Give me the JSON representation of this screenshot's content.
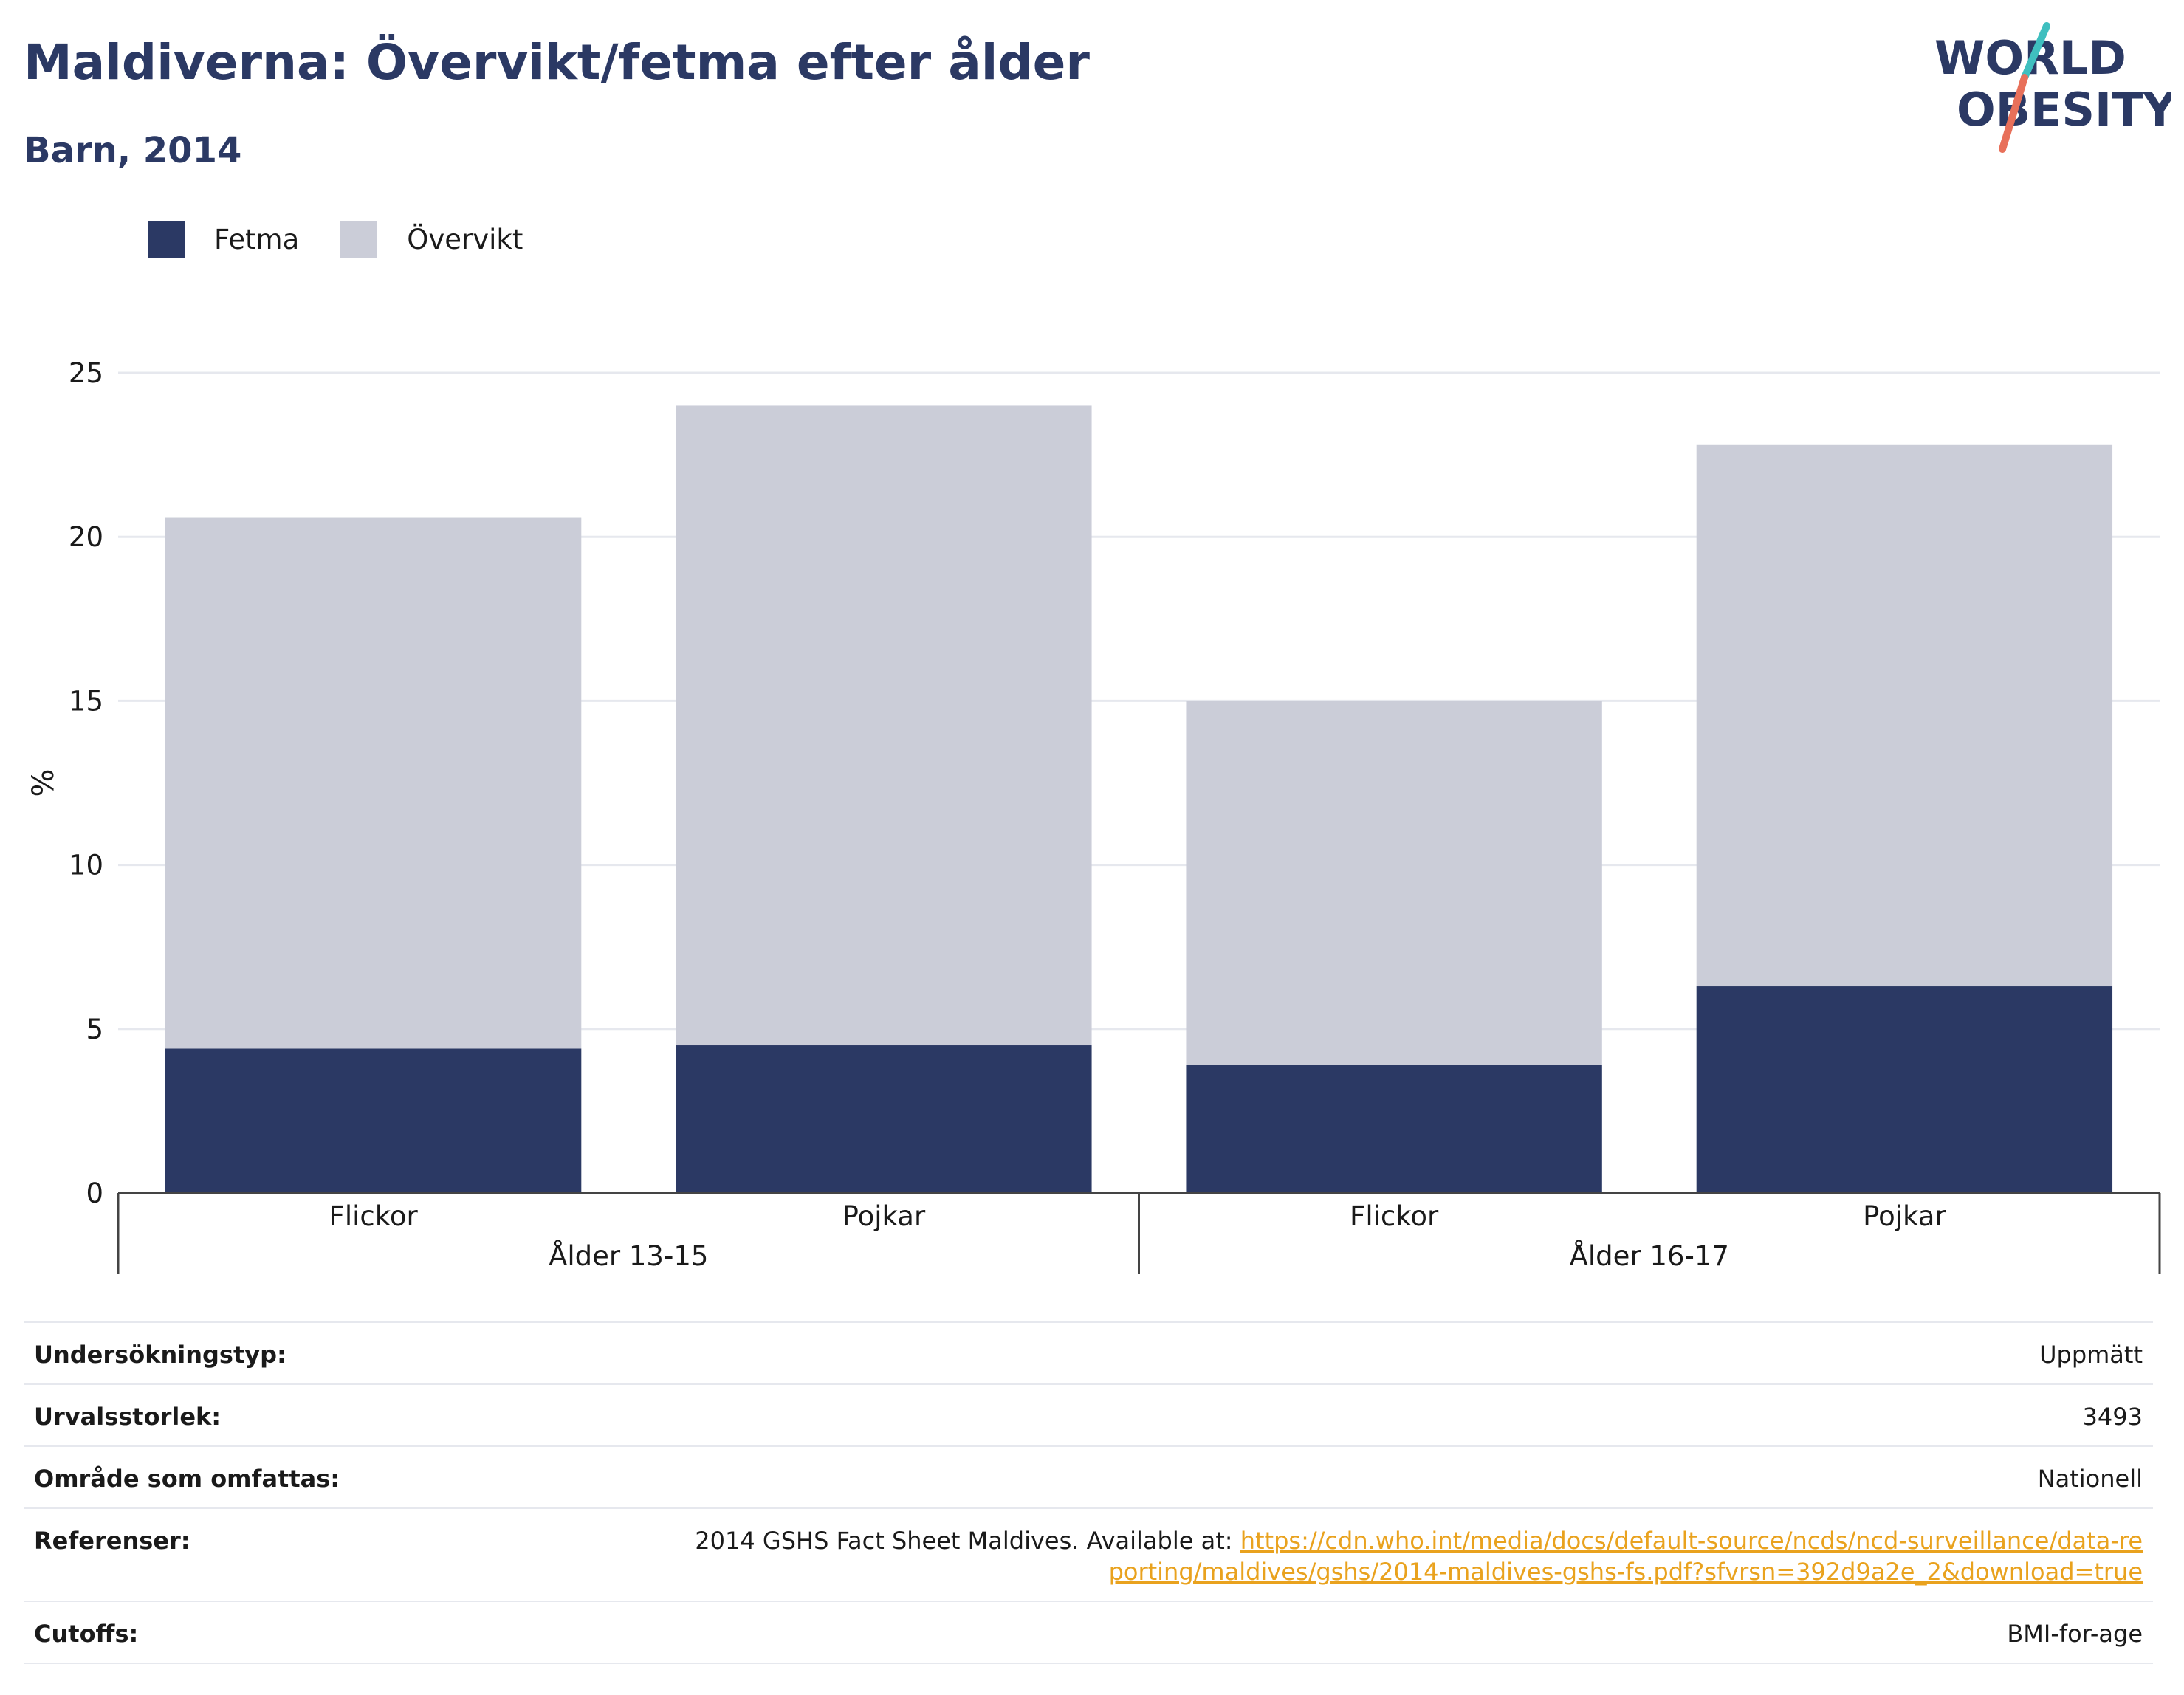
{
  "header": {
    "title": "Maldiverna: Övervikt/fetma efter ålder",
    "subtitle": "Barn, 2014"
  },
  "logo": {
    "line1": "WORLD",
    "line2": "OBESITY",
    "accent_teal": "#3fbfbf",
    "accent_coral": "#e8705a"
  },
  "colors": {
    "fetma": "#2b3964",
    "overvikt": "#cbcdd8",
    "title": "#2b3964",
    "link": "#e9a21e"
  },
  "chart_data": {
    "type": "bar",
    "stacked": true,
    "title": "Maldiverna: Övervikt/fetma efter ålder",
    "subtitle": "Barn, 2014",
    "ylabel": "%",
    "ylim": [
      0,
      25
    ],
    "yticks": [
      0,
      5,
      10,
      15,
      20,
      25
    ],
    "grid": true,
    "legend_position": "top-left",
    "groups": [
      {
        "label": "Ålder 13-15",
        "categories": [
          "Flickor",
          "Pojkar"
        ]
      },
      {
        "label": "Ålder 16-17",
        "categories": [
          "Flickor",
          "Pojkar"
        ]
      }
    ],
    "categories": [
      "Flickor",
      "Pojkar",
      "Flickor",
      "Pojkar"
    ],
    "series": [
      {
        "name": "Fetma",
        "color": "#2b3964",
        "values": [
          4.4,
          4.5,
          3.9,
          6.3
        ]
      },
      {
        "name": "Övervikt",
        "color": "#cbcdd8",
        "values": [
          16.2,
          19.5,
          11.1,
          16.5
        ]
      }
    ]
  },
  "info": {
    "rows": [
      {
        "label": "Undersökningstyp:",
        "value": "Uppmätt"
      },
      {
        "label": "Urvalsstorlek:",
        "value": "3493"
      },
      {
        "label": "Område som omfattas:",
        "value": "Nationell"
      },
      {
        "label": "Referenser:",
        "value": "2014 GSHS Fact Sheet Maldives. Available at: ",
        "link": "https://cdn.who.int/media/docs/default-source/ncds/ncd-surveillance/data-reporting/maldives/gshs/2014-maldives-gshs-fs.pdf?sfvrsn=392d9a2e_2&download=true"
      },
      {
        "label": "Cutoffs:",
        "value": "BMI-for-age"
      }
    ]
  }
}
